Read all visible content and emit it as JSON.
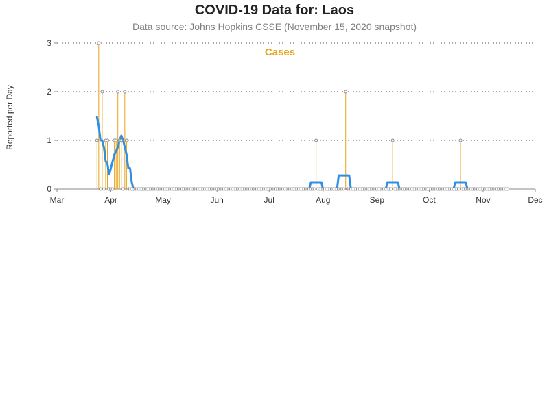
{
  "chart_data": {
    "type": "line",
    "title": "COVID-19 Data for: Laos",
    "subtitle": "Data source: Johns Hopkins CSSE (November 15, 2020 snapshot)",
    "ylabel": "Reported per Day",
    "xlabel": "",
    "ylim": [
      0,
      3
    ],
    "yticks": [
      0,
      1,
      2,
      3
    ],
    "xlim": [
      "2020-03-01",
      "2020-12-01"
    ],
    "xticks": [
      {
        "date": "2020-03-01",
        "label": "Mar"
      },
      {
        "date": "2020-04-01",
        "label": "Apr"
      },
      {
        "date": "2020-05-01",
        "label": "May"
      },
      {
        "date": "2020-06-01",
        "label": "Jun"
      },
      {
        "date": "2020-07-01",
        "label": "Jul"
      },
      {
        "date": "2020-08-01",
        "label": "Aug"
      },
      {
        "date": "2020-09-01",
        "label": "Sep"
      },
      {
        "date": "2020-10-01",
        "label": "Oct"
      },
      {
        "date": "2020-11-01",
        "label": "Nov"
      },
      {
        "date": "2020-12-01",
        "label": "Dec"
      }
    ],
    "grid": "horizontal-dotted",
    "legend": "top-center",
    "colors": {
      "daily": "#e8a317",
      "average": "#2f8ee6",
      "marker_edge": "#8c8c8c",
      "grid": "#555555",
      "axis": "#888888"
    },
    "series": [
      {
        "name": "Cases",
        "kind": "daily-needles",
        "start": "2020-03-24",
        "end": "2020-11-15",
        "nonzero": [
          {
            "date": "2020-03-24",
            "value": 1
          },
          {
            "date": "2020-03-25",
            "value": 3
          },
          {
            "date": "2020-03-27",
            "value": 2
          },
          {
            "date": "2020-03-29",
            "value": 1
          },
          {
            "date": "2020-03-30",
            "value": 1
          },
          {
            "date": "2020-04-03",
            "value": 1
          },
          {
            "date": "2020-04-04",
            "value": 1
          },
          {
            "date": "2020-04-05",
            "value": 2
          },
          {
            "date": "2020-04-06",
            "value": 1
          },
          {
            "date": "2020-04-07",
            "value": 1
          },
          {
            "date": "2020-04-09",
            "value": 2
          },
          {
            "date": "2020-04-10",
            "value": 1
          },
          {
            "date": "2020-07-28",
            "value": 1
          },
          {
            "date": "2020-08-14",
            "value": 2
          },
          {
            "date": "2020-09-10",
            "value": 1
          },
          {
            "date": "2020-10-19",
            "value": 1
          }
        ]
      },
      {
        "kind": "moving-average",
        "points": [
          {
            "date": "2020-03-24",
            "value": 1.48
          },
          {
            "date": "2020-03-25",
            "value": 1.3
          },
          {
            "date": "2020-03-26",
            "value": 1.0
          },
          {
            "date": "2020-03-27",
            "value": 1.0
          },
          {
            "date": "2020-03-28",
            "value": 0.86
          },
          {
            "date": "2020-03-29",
            "value": 0.57
          },
          {
            "date": "2020-03-30",
            "value": 0.52
          },
          {
            "date": "2020-03-31",
            "value": 0.3
          },
          {
            "date": "2020-04-01",
            "value": 0.43
          },
          {
            "date": "2020-04-02",
            "value": 0.57
          },
          {
            "date": "2020-04-03",
            "value": 0.71
          },
          {
            "date": "2020-04-04",
            "value": 0.78
          },
          {
            "date": "2020-04-05",
            "value": 0.86
          },
          {
            "date": "2020-04-06",
            "value": 1.0
          },
          {
            "date": "2020-04-07",
            "value": 1.1
          },
          {
            "date": "2020-04-08",
            "value": 1.0
          },
          {
            "date": "2020-04-09",
            "value": 0.86
          },
          {
            "date": "2020-04-10",
            "value": 0.71
          },
          {
            "date": "2020-04-11",
            "value": 0.43
          },
          {
            "date": "2020-04-12",
            "value": 0.43
          },
          {
            "date": "2020-04-13",
            "value": 0.14
          },
          {
            "date": "2020-04-14",
            "value": 0.0
          },
          {
            "date": "2020-07-24",
            "value": 0.0
          },
          {
            "date": "2020-07-25",
            "value": 0.14
          },
          {
            "date": "2020-07-31",
            "value": 0.14
          },
          {
            "date": "2020-08-01",
            "value": 0.0
          },
          {
            "date": "2020-08-09",
            "value": 0.0
          },
          {
            "date": "2020-08-10",
            "value": 0.28
          },
          {
            "date": "2020-08-16",
            "value": 0.28
          },
          {
            "date": "2020-08-17",
            "value": 0.0
          },
          {
            "date": "2020-09-06",
            "value": 0.0
          },
          {
            "date": "2020-09-07",
            "value": 0.14
          },
          {
            "date": "2020-09-13",
            "value": 0.14
          },
          {
            "date": "2020-09-14",
            "value": 0.0
          },
          {
            "date": "2020-10-15",
            "value": 0.0
          },
          {
            "date": "2020-10-16",
            "value": 0.14
          },
          {
            "date": "2020-10-22",
            "value": 0.14
          },
          {
            "date": "2020-10-23",
            "value": 0.0
          },
          {
            "date": "2020-11-12",
            "value": 0.0
          }
        ]
      }
    ]
  }
}
